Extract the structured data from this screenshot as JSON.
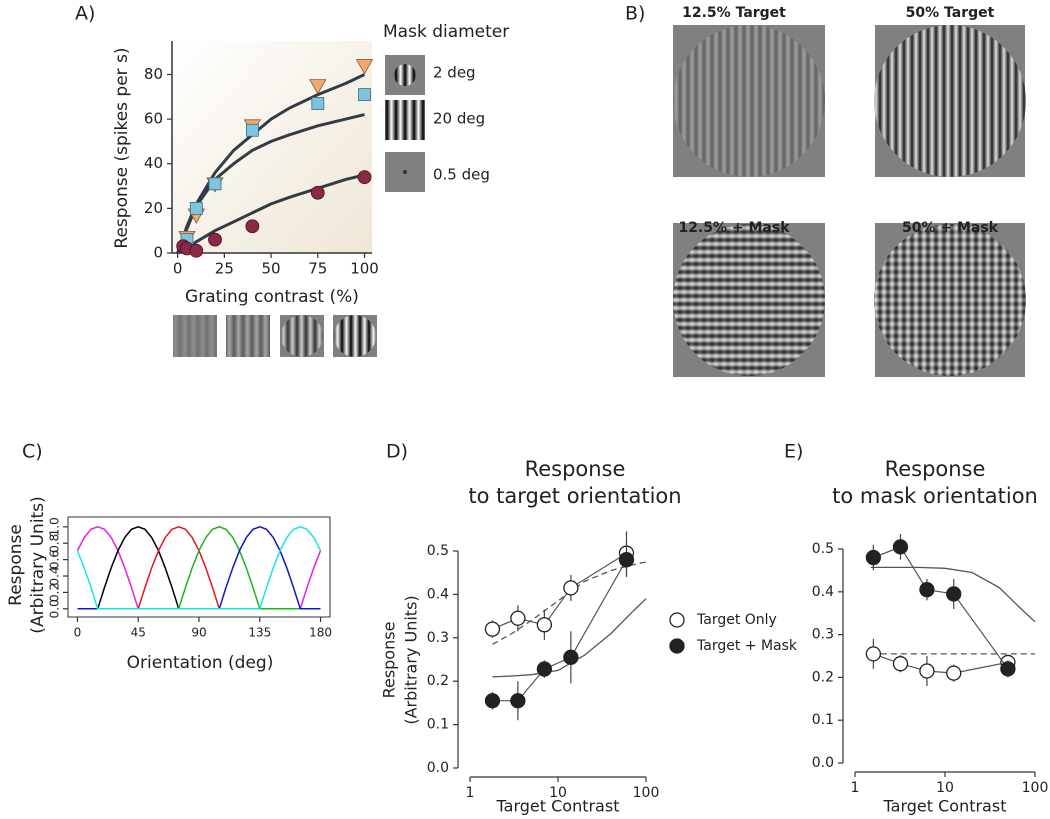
{
  "chart_data": [
    {
      "type": "scatter",
      "label": "A)",
      "xlabel": "Grating contrast (%)",
      "ylabel": "Response (spikes per s)",
      "legend_title": "Mask diameter",
      "xlim": [
        -3,
        104
      ],
      "ylim": [
        0,
        95
      ],
      "xticks": [
        0,
        25,
        50,
        75,
        100
      ],
      "yticks": [
        0,
        20,
        40,
        60,
        80
      ],
      "fit_color": "#333c44",
      "series": [
        {
          "name": "2 deg",
          "color": "#f5a86e",
          "marker": "triangle",
          "x": [
            5,
            10,
            20,
            40,
            75,
            100
          ],
          "values": [
            7,
            17,
            31,
            57,
            75,
            84
          ],
          "fit": {
            "x": [
              0,
              5,
              10,
              20,
              30,
              40,
              50,
              60,
              75,
              90,
              100
            ],
            "values": [
              0,
              12,
              22,
              36,
              46,
              53,
              60,
              65,
              71,
              76,
              80
            ]
          }
        },
        {
          "name": "20 deg",
          "color": "#7dc4dc",
          "marker": "square",
          "x": [
            5,
            10,
            20,
            40,
            75,
            100
          ],
          "values": [
            6,
            20,
            31,
            55,
            67,
            71
          ],
          "fit": {
            "x": [
              0,
              5,
              10,
              20,
              30,
              40,
              50,
              60,
              75,
              90,
              100
            ],
            "values": [
              0,
              11,
              21,
              33,
              40,
              46,
              50,
              53,
              57,
              60,
              62
            ]
          }
        },
        {
          "name": "0.5 deg",
          "color": "#8b2a46",
          "marker": "circle",
          "x": [
            3,
            5,
            10,
            20,
            40,
            75,
            100
          ],
          "values": [
            3,
            2,
            1,
            6,
            12,
            27,
            34
          ],
          "fit": {
            "x": [
              0,
              5,
              10,
              20,
              30,
              40,
              50,
              60,
              75,
              90,
              100
            ],
            "values": [
              0,
              2,
              5,
              10,
              14,
              18,
              22,
              25,
              29,
              33,
              35
            ]
          }
        }
      ]
    },
    {
      "type": "line",
      "label": "C)",
      "xlabel": "Orientation (deg)",
      "ylabel": [
        "Response",
        "(Arbitrary Units)"
      ],
      "xlim": [
        -7,
        187
      ],
      "ylim": [
        -0.1,
        1.12
      ],
      "xticks": [
        0,
        45,
        90,
        135,
        180
      ],
      "yticks": [
        {
          "value": 0,
          "label": "0.0"
        },
        {
          "value": 0.2,
          "label": "0.2"
        },
        {
          "value": 0.4,
          "label": "0.4"
        },
        {
          "value": 0.6,
          "label": "0.6"
        },
        {
          "value": 0.8,
          "label": "0.8"
        },
        {
          "value": 1,
          "label": "1.0"
        }
      ],
      "x": [
        0,
        5,
        10,
        15,
        20,
        25,
        30,
        35,
        40,
        45,
        50,
        55,
        60,
        65,
        70,
        75,
        80,
        85,
        90,
        95,
        100,
        105,
        110,
        115,
        120,
        125,
        130,
        135,
        140,
        145,
        150,
        155,
        160,
        165,
        170,
        175,
        180
      ],
      "series": [
        {
          "color": "#e81ee8",
          "values": [
            0.71,
            0.87,
            0.97,
            1,
            0.97,
            0.87,
            0.71,
            0.5,
            0.26,
            0,
            0,
            0,
            0,
            0,
            0,
            0,
            0,
            0,
            0,
            0,
            0,
            0,
            0,
            0,
            0,
            0,
            0,
            0,
            0,
            0,
            0,
            0,
            0,
            0,
            0.26,
            0.5,
            0.71
          ]
        },
        {
          "color": "#000000",
          "values": [
            0,
            0,
            0,
            0,
            0.26,
            0.5,
            0.71,
            0.87,
            0.97,
            1,
            0.97,
            0.87,
            0.71,
            0.5,
            0.26,
            0,
            0,
            0,
            0,
            0,
            0,
            0,
            0,
            0,
            0,
            0,
            0,
            0,
            0,
            0,
            0,
            0,
            0,
            0,
            0,
            0,
            0
          ]
        },
        {
          "color": "#e8141e",
          "values": [
            0,
            0,
            0,
            0,
            0,
            0,
            0,
            0,
            0,
            0,
            0.26,
            0.5,
            0.71,
            0.87,
            0.97,
            1,
            0.97,
            0.87,
            0.71,
            0.5,
            0.26,
            0,
            0,
            0,
            0,
            0,
            0,
            0,
            0,
            0,
            0,
            0,
            0,
            0,
            0,
            0,
            0
          ]
        },
        {
          "color": "#1eb41e",
          "values": [
            0,
            0,
            0,
            0,
            0,
            0,
            0,
            0,
            0,
            0,
            0,
            0,
            0,
            0,
            0,
            0,
            0.26,
            0.5,
            0.71,
            0.87,
            0.97,
            1,
            0.97,
            0.87,
            0.71,
            0.5,
            0.26,
            0,
            0,
            0,
            0,
            0,
            0,
            0,
            0,
            0,
            0
          ]
        },
        {
          "color": "#1414c8",
          "values": [
            0,
            0,
            0,
            0,
            0,
            0,
            0,
            0,
            0,
            0,
            0,
            0,
            0,
            0,
            0,
            0,
            0,
            0,
            0,
            0,
            0,
            0,
            0.26,
            0.5,
            0.71,
            0.87,
            0.97,
            1,
            0.97,
            0.87,
            0.71,
            0.5,
            0.26,
            0,
            0,
            0,
            0
          ]
        },
        {
          "color": "#14e6e6",
          "values": [
            0.71,
            0.5,
            0.26,
            0,
            0,
            0,
            0,
            0,
            0,
            0,
            0,
            0,
            0,
            0,
            0,
            0,
            0,
            0,
            0,
            0,
            0,
            0,
            0,
            0,
            0,
            0,
            0,
            0,
            0.26,
            0.5,
            0.71,
            0.87,
            0.97,
            1,
            0.97,
            0.87,
            0.71
          ]
        }
      ]
    },
    {
      "type": "scatter",
      "label": "D)",
      "title": [
        "Response",
        "to target orientation"
      ],
      "xlabel": "Target Contrast",
      "ylabel": [
        "Response",
        "(Arbitrary Units)"
      ],
      "xscale": "log",
      "xlim": [
        1,
        100
      ],
      "ylim": [
        0,
        0.5
      ],
      "xticks": [
        1,
        10,
        100
      ],
      "yticks": [
        {
          "value": 0,
          "label": "0.0"
        },
        {
          "value": 0.1,
          "label": "0.1"
        },
        {
          "value": 0.2,
          "label": "0.2"
        },
        {
          "value": 0.3,
          "label": "0.3"
        },
        {
          "value": 0.4,
          "label": "0.4"
        },
        {
          "value": 0.5,
          "label": "0.5"
        }
      ],
      "series": [
        {
          "name": "Target Only",
          "fill": "#ffffff",
          "x": [
            1.8,
            3.5,
            7,
            14,
            60
          ],
          "values": [
            0.32,
            0.345,
            0.33,
            0.415,
            0.495
          ],
          "errors": [
            0.02,
            0.03,
            0.035,
            0.03,
            0.05
          ]
        },
        {
          "name": "Target + Mask",
          "fill": "#222222",
          "x": [
            1.8,
            3.5,
            7,
            14,
            60
          ],
          "values": [
            0.155,
            0.155,
            0.228,
            0.255,
            0.48
          ],
          "errors": [
            0.02,
            0.045,
            0.02,
            0.06,
            0.04
          ]
        }
      ],
      "fits": [
        {
          "style": "dashed",
          "x": [
            1.8,
            3,
            5,
            10,
            20,
            40,
            70,
            100
          ],
          "values": [
            0.285,
            0.31,
            0.34,
            0.385,
            0.43,
            0.455,
            0.468,
            0.475
          ]
        },
        {
          "style": "solid",
          "x": [
            1.8,
            3,
            5,
            10,
            20,
            40,
            70,
            100
          ],
          "values": [
            0.21,
            0.212,
            0.215,
            0.225,
            0.26,
            0.31,
            0.36,
            0.39
          ]
        }
      ]
    },
    {
      "type": "scatter",
      "label": "E)",
      "title": [
        "Response",
        "to mask orientation"
      ],
      "xlabel": "Target Contrast",
      "xscale": "log",
      "xlim": [
        1,
        100
      ],
      "ylim": [
        0,
        0.5
      ],
      "xticks": [
        1,
        10,
        100
      ],
      "yticks": [
        {
          "value": 0,
          "label": "0.0"
        },
        {
          "value": 0.1,
          "label": "0.1"
        },
        {
          "value": 0.2,
          "label": "0.2"
        },
        {
          "value": 0.3,
          "label": "0.3"
        },
        {
          "value": 0.4,
          "label": "0.4"
        },
        {
          "value": 0.5,
          "label": "0.5"
        }
      ],
      "series": [
        {
          "fill": "#ffffff",
          "x": [
            1.6,
            3.2,
            6.3,
            12.5,
            50
          ],
          "values": [
            0.255,
            0.232,
            0.215,
            0.21,
            0.235
          ],
          "errors": [
            0.035,
            0.02,
            0.035,
            0.02,
            0.015
          ]
        },
        {
          "fill": "#222222",
          "x": [
            1.6,
            3.2,
            6.3,
            12.5,
            50
          ],
          "values": [
            0.48,
            0.505,
            0.405,
            0.395,
            0.22
          ],
          "errors": [
            0.03,
            0.03,
            0.025,
            0.035,
            0.02
          ]
        }
      ],
      "fits": [
        {
          "style": "dashed",
          "x": [
            1.5,
            100
          ],
          "values": [
            0.255,
            0.255
          ]
        },
        {
          "style": "solid",
          "x": [
            1.5,
            5,
            10,
            20,
            40,
            70,
            100
          ],
          "values": [
            0.457,
            0.457,
            0.455,
            0.445,
            0.41,
            0.36,
            0.33
          ]
        }
      ]
    }
  ],
  "images": {
    "label": "B)",
    "titles": [
      "12.5% Target",
      "50% Target",
      "12.5% + Mask",
      "50% + Mask"
    ]
  }
}
